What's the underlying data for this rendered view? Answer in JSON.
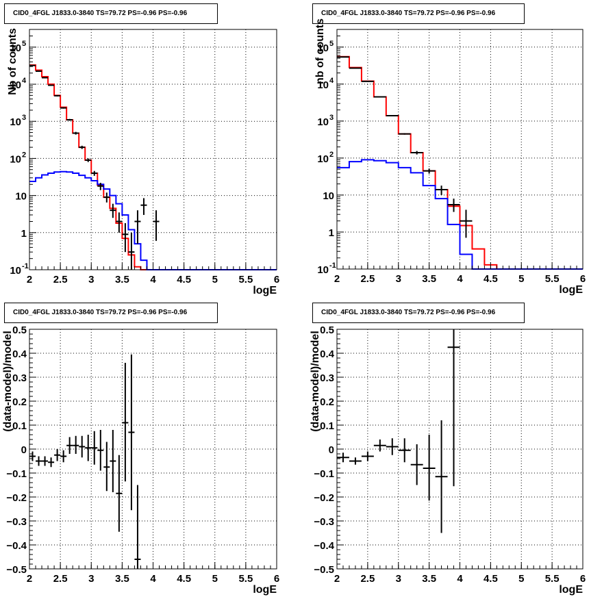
{
  "chart_data": [
    {
      "type": "line",
      "title": "CID0_4FGL J1833.0-3840 TS=79.72 PS=-0.96 PS=-0.96",
      "xlabel": "logE",
      "ylabel": "Nb of counts",
      "log_y": true,
      "xlim": [
        2,
        6
      ],
      "ylim": [
        0.1,
        300000
      ],
      "grid": true,
      "x_ticks": [
        "2",
        "2.5",
        "3",
        "3.5",
        "4",
        "4.5",
        "5",
        "5.5",
        "6"
      ],
      "y_ticks": [
        {
          "value": 0.1,
          "label": "10",
          "exp": "-1"
        },
        {
          "value": 1,
          "label": "1",
          "exp": ""
        },
        {
          "value": 10,
          "label": "10",
          "exp": ""
        },
        {
          "value": 100,
          "label": "10",
          "exp": "2"
        },
        {
          "value": 1000,
          "label": "10",
          "exp": "3"
        },
        {
          "value": 10000,
          "label": "10",
          "exp": "4"
        },
        {
          "value": 100000,
          "label": "10",
          "exp": "5"
        }
      ],
      "bin_edges": [
        2.0,
        2.1,
        2.2,
        2.3,
        2.4,
        2.5,
        2.6,
        2.7,
        2.8,
        2.9,
        3.0,
        3.1,
        3.2,
        3.3,
        3.4,
        3.5,
        3.6,
        3.7,
        3.8,
        3.9,
        4.0,
        4.1,
        4.2,
        4.3,
        4.4,
        4.5,
        4.6,
        4.7,
        4.8,
        4.9,
        5.0,
        5.1,
        5.2,
        5.3,
        5.4,
        5.5,
        5.6,
        5.7,
        5.8,
        5.9,
        6.0
      ],
      "series": [
        {
          "color": "#ff0000",
          "values": [
            33000,
            24000,
            16000,
            10000,
            5000,
            2400,
            1100,
            480,
            200,
            90,
            40,
            19,
            9,
            4.5,
            1.8,
            0.7,
            0.25,
            0.12,
            0.1,
            0.1,
            0.1,
            0.1,
            0.1,
            0.1,
            0.1,
            0.1,
            0.1,
            0.1,
            0.1,
            0.1,
            0.1,
            0.1,
            0.1,
            0.1,
            0.1,
            0.1,
            0.1,
            0.1,
            0.1,
            0.1
          ]
        },
        {
          "color": "#0000ff",
          "values": [
            24,
            30,
            36,
            40,
            43,
            44,
            43,
            40,
            35,
            30,
            25,
            20,
            15,
            10,
            6,
            3,
            1.2,
            0.5,
            0.18,
            0.1,
            0.1,
            0.1,
            0.1,
            0.1,
            0.1,
            0.1,
            0.1,
            0.1,
            0.1,
            0.1,
            0.1,
            0.1,
            0.1,
            0.1,
            0.1,
            0.1,
            0.1,
            0.1,
            0.1,
            0.1
          ]
        }
      ],
      "points": [
        {
          "x": 2.05,
          "y": 32000,
          "lo": 31500,
          "hi": 32500
        },
        {
          "x": 2.15,
          "y": 22500,
          "lo": 22000,
          "hi": 23000
        },
        {
          "x": 2.25,
          "y": 15000,
          "lo": 14600,
          "hi": 15400
        },
        {
          "x": 2.35,
          "y": 9400,
          "lo": 9100,
          "hi": 9700
        },
        {
          "x": 2.45,
          "y": 4900,
          "lo": 4700,
          "hi": 5100
        },
        {
          "x": 2.55,
          "y": 2300,
          "lo": 2200,
          "hi": 2400
        },
        {
          "x": 2.65,
          "y": 1100,
          "lo": 1040,
          "hi": 1160
        },
        {
          "x": 2.75,
          "y": 480,
          "lo": 440,
          "hi": 520
        },
        {
          "x": 2.85,
          "y": 200,
          "lo": 180,
          "hi": 220
        },
        {
          "x": 2.95,
          "y": 90,
          "lo": 80,
          "hi": 100
        },
        {
          "x": 3.05,
          "y": 40,
          "lo": 34,
          "hi": 46
        },
        {
          "x": 3.15,
          "y": 18,
          "lo": 14,
          "hi": 22
        },
        {
          "x": 3.25,
          "y": 9,
          "lo": 6.5,
          "hi": 12
        },
        {
          "x": 3.35,
          "y": 4,
          "lo": 2.5,
          "hi": 6
        },
        {
          "x": 3.45,
          "y": 2,
          "lo": 1,
          "hi": 3.5
        },
        {
          "x": 3.55,
          "y": 0.9,
          "lo": 0.3,
          "hi": 1.8
        },
        {
          "x": 3.65,
          "y": 0.3,
          "lo": 0.1,
          "hi": 1
        },
        {
          "x": 3.75,
          "y": 2,
          "lo": 0.5,
          "hi": 4
        },
        {
          "x": 3.85,
          "y": 5.5,
          "lo": 3,
          "hi": 8.5
        },
        {
          "x": 4.05,
          "y": 2,
          "lo": 0.6,
          "hi": 4
        }
      ],
      "point_xerr": 0.05
    },
    {
      "type": "line",
      "title": "CID0_4FGL J1833.0-3840 TS=79.72 PS=-0.96 PS=-0.96",
      "xlabel": "logE",
      "ylabel": "nb of counts",
      "log_y": true,
      "xlim": [
        2,
        6
      ],
      "ylim": [
        0.1,
        300000
      ],
      "grid": true,
      "x_ticks": [
        "2",
        "2.5",
        "3",
        "3.5",
        "4",
        "4.5",
        "5",
        "5.5",
        "6"
      ],
      "y_ticks": [
        {
          "value": 0.1,
          "label": "10",
          "exp": "-1"
        },
        {
          "value": 1,
          "label": "1",
          "exp": ""
        },
        {
          "value": 10,
          "label": "10",
          "exp": ""
        },
        {
          "value": 100,
          "label": "10",
          "exp": "2"
        },
        {
          "value": 1000,
          "label": "10",
          "exp": "3"
        },
        {
          "value": 10000,
          "label": "10",
          "exp": "4"
        },
        {
          "value": 100000,
          "label": "10",
          "exp": "5"
        }
      ],
      "bin_edges": [
        2.0,
        2.2,
        2.4,
        2.6,
        2.8,
        3.0,
        3.2,
        3.4,
        3.6,
        3.8,
        4.0,
        4.2,
        4.4,
        4.6,
        4.8,
        5.0,
        5.2,
        5.4,
        5.6,
        5.8,
        6.0
      ],
      "series": [
        {
          "color": "#ff0000",
          "values": [
            55000,
            28000,
            12000,
            4500,
            1400,
            450,
            140,
            45,
            14,
            5,
            1.5,
            0.35,
            0.13,
            0.1,
            0.1,
            0.1,
            0.1,
            0.1,
            0.1,
            0.1
          ]
        },
        {
          "color": "#0000ff",
          "values": [
            55,
            80,
            90,
            85,
            75,
            55,
            40,
            18,
            8,
            1.6,
            0.25,
            0.1,
            0.1,
            0.1,
            0.1,
            0.1,
            0.1,
            0.1,
            0.1,
            0.1
          ]
        }
      ],
      "points": [
        {
          "x": 2.1,
          "y": 54000,
          "lo": 53500,
          "hi": 54500
        },
        {
          "x": 2.3,
          "y": 27000,
          "lo": 26700,
          "hi": 27300
        },
        {
          "x": 2.5,
          "y": 11800,
          "lo": 11600,
          "hi": 12000
        },
        {
          "x": 2.7,
          "y": 4500,
          "lo": 4400,
          "hi": 4600
        },
        {
          "x": 2.9,
          "y": 1400,
          "lo": 1350,
          "hi": 1450
        },
        {
          "x": 3.1,
          "y": 450,
          "lo": 430,
          "hi": 470
        },
        {
          "x": 3.3,
          "y": 140,
          "lo": 125,
          "hi": 155
        },
        {
          "x": 3.5,
          "y": 45,
          "lo": 38,
          "hi": 52
        },
        {
          "x": 3.7,
          "y": 14,
          "lo": 10,
          "hi": 18
        },
        {
          "x": 3.9,
          "y": 5.5,
          "lo": 3.5,
          "hi": 8
        },
        {
          "x": 4.1,
          "y": 2,
          "lo": 0.7,
          "hi": 4
        }
      ],
      "point_xerr": 0.1
    },
    {
      "type": "scatter",
      "title": "CID0_4FGL J1833.0-3840 TS=79.72 PS=-0.96 PS=-0.96",
      "xlabel": "logE",
      "ylabel": "(data-model)/model",
      "log_y": false,
      "xlim": [
        2,
        6
      ],
      "ylim": [
        -0.5,
        0.5
      ],
      "grid": true,
      "x_ticks": [
        "2",
        "2.5",
        "3",
        "3.5",
        "4",
        "4.5",
        "5",
        "5.5",
        "6"
      ],
      "y_ticks": [
        {
          "value": -0.5,
          "label": "−0.5",
          "exp": ""
        },
        {
          "value": -0.4,
          "label": "−0.4",
          "exp": ""
        },
        {
          "value": -0.3,
          "label": "−0.3",
          "exp": ""
        },
        {
          "value": -0.2,
          "label": "−0.2",
          "exp": ""
        },
        {
          "value": -0.1,
          "label": "−0.1",
          "exp": ""
        },
        {
          "value": 0,
          "label": "0",
          "exp": ""
        },
        {
          "value": 0.1,
          "label": "0.1",
          "exp": ""
        },
        {
          "value": 0.2,
          "label": "0.2",
          "exp": ""
        },
        {
          "value": 0.3,
          "label": "0.3",
          "exp": ""
        },
        {
          "value": 0.4,
          "label": "0.4",
          "exp": ""
        },
        {
          "value": 0.5,
          "label": "0.5",
          "exp": ""
        }
      ],
      "series": [],
      "points": [
        {
          "x": 2.05,
          "y": -0.03,
          "lo": -0.05,
          "hi": -0.01
        },
        {
          "x": 2.15,
          "y": -0.05,
          "lo": -0.07,
          "hi": -0.03
        },
        {
          "x": 2.25,
          "y": -0.05,
          "lo": -0.07,
          "hi": -0.03
        },
        {
          "x": 2.35,
          "y": -0.055,
          "lo": -0.075,
          "hi": -0.035
        },
        {
          "x": 2.45,
          "y": -0.025,
          "lo": -0.05,
          "hi": 0.0
        },
        {
          "x": 2.55,
          "y": -0.03,
          "lo": -0.055,
          "hi": -0.005
        },
        {
          "x": 2.65,
          "y": 0.015,
          "lo": -0.02,
          "hi": 0.05
        },
        {
          "x": 2.75,
          "y": 0.015,
          "lo": -0.02,
          "hi": 0.055
        },
        {
          "x": 2.85,
          "y": 0.01,
          "lo": -0.035,
          "hi": 0.055
        },
        {
          "x": 2.95,
          "y": 0.005,
          "lo": -0.05,
          "hi": 0.06
        },
        {
          "x": 3.05,
          "y": 0.005,
          "lo": -0.065,
          "hi": 0.075
        },
        {
          "x": 3.15,
          "y": -0.005,
          "lo": -0.09,
          "hi": 0.08
        },
        {
          "x": 3.25,
          "y": -0.075,
          "lo": -0.175,
          "hi": 0.03
        },
        {
          "x": 3.35,
          "y": -0.05,
          "lo": -0.18,
          "hi": 0.08
        },
        {
          "x": 3.45,
          "y": -0.185,
          "lo": -0.345,
          "hi": -0.025
        },
        {
          "x": 3.55,
          "y": 0.11,
          "lo": -0.135,
          "hi": 0.36
        },
        {
          "x": 3.65,
          "y": 0.07,
          "lo": -0.255,
          "hi": 0.395
        },
        {
          "x": 3.75,
          "y": -0.46,
          "lo": -0.5,
          "hi": -0.15
        }
      ],
      "point_xerr": 0.05
    },
    {
      "type": "scatter",
      "title": "CID0_4FGL J1833.0-3840 TS=79.72 PS=-0.96 PS=-0.96",
      "xlabel": "logE",
      "ylabel": "(data-model)/model",
      "log_y": false,
      "xlim": [
        2,
        6
      ],
      "ylim": [
        -0.5,
        0.5
      ],
      "grid": true,
      "x_ticks": [
        "2",
        "2.5",
        "3",
        "3.5",
        "4",
        "4.5",
        "5",
        "5.5",
        "6"
      ],
      "y_ticks": [
        {
          "value": -0.5,
          "label": "−0.5",
          "exp": ""
        },
        {
          "value": -0.4,
          "label": "−0.4",
          "exp": ""
        },
        {
          "value": -0.3,
          "label": "−0.3",
          "exp": ""
        },
        {
          "value": -0.2,
          "label": "−0.2",
          "exp": ""
        },
        {
          "value": -0.1,
          "label": "−0.1",
          "exp": ""
        },
        {
          "value": 0,
          "label": "0",
          "exp": ""
        },
        {
          "value": 0.1,
          "label": "0.1",
          "exp": ""
        },
        {
          "value": 0.2,
          "label": "0.2",
          "exp": ""
        },
        {
          "value": 0.3,
          "label": "0.3",
          "exp": ""
        },
        {
          "value": 0.4,
          "label": "0.4",
          "exp": ""
        },
        {
          "value": 0.5,
          "label": "0.5",
          "exp": ""
        }
      ],
      "series": [],
      "points": [
        {
          "x": 2.1,
          "y": -0.035,
          "lo": -0.055,
          "hi": -0.015
        },
        {
          "x": 2.3,
          "y": -0.05,
          "lo": -0.065,
          "hi": -0.035
        },
        {
          "x": 2.5,
          "y": -0.03,
          "lo": -0.05,
          "hi": -0.01
        },
        {
          "x": 2.7,
          "y": 0.015,
          "lo": -0.01,
          "hi": 0.04
        },
        {
          "x": 2.9,
          "y": 0.01,
          "lo": -0.025,
          "hi": 0.045
        },
        {
          "x": 3.1,
          "y": -0.005,
          "lo": -0.055,
          "hi": 0.045
        },
        {
          "x": 3.3,
          "y": -0.065,
          "lo": -0.15,
          "hi": 0.02
        },
        {
          "x": 3.5,
          "y": -0.08,
          "lo": -0.215,
          "hi": 0.06
        },
        {
          "x": 3.7,
          "y": -0.115,
          "lo": -0.35,
          "hi": 0.12
        },
        {
          "x": 3.9,
          "y": 0.425,
          "lo": -0.155,
          "hi": 0.5
        }
      ],
      "point_xerr": 0.1
    }
  ]
}
